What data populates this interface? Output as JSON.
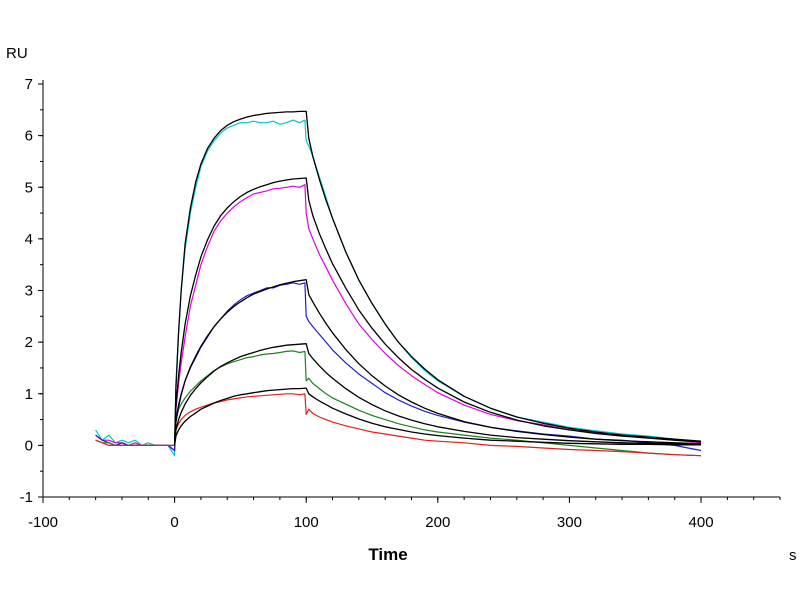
{
  "chart_data": {
    "type": "line",
    "title": "",
    "xlabel": "Time",
    "x_unit": "s",
    "y_unit": "RU",
    "xlim": [
      -100,
      460
    ],
    "ylim": [
      -1,
      7
    ],
    "x_ticks": [
      -100,
      0,
      100,
      200,
      300,
      400
    ],
    "y_ticks": [
      -1,
      0,
      1,
      2,
      3,
      4,
      5,
      6,
      7
    ],
    "grid": false,
    "legend": "none",
    "fit_color": "#000000",
    "series": [
      {
        "color": "#00c8c8",
        "x": [
          -60,
          -55,
          -50,
          -45,
          -40,
          -35,
          -30,
          -25,
          -20,
          -15,
          -10,
          -5,
          0,
          1,
          3,
          5,
          8,
          12,
          16,
          20,
          25,
          30,
          35,
          40,
          45,
          50,
          55,
          60,
          65,
          70,
          75,
          80,
          85,
          90,
          95,
          99,
          100,
          102,
          105,
          110,
          115,
          120,
          130,
          140,
          150,
          160,
          170,
          180,
          190,
          200,
          220,
          240,
          260,
          280,
          300,
          320,
          340,
          360,
          380,
          400
        ],
        "y": [
          0.3,
          0.1,
          0.2,
          0.05,
          0.1,
          0.05,
          0.1,
          0.0,
          0.05,
          0.0,
          0.0,
          0.0,
          -0.2,
          1.2,
          2.2,
          3.0,
          3.8,
          4.5,
          5.0,
          5.4,
          5.7,
          5.9,
          6.05,
          6.15,
          6.2,
          6.25,
          6.25,
          6.28,
          6.25,
          6.25,
          6.28,
          6.22,
          6.25,
          6.3,
          6.25,
          6.3,
          5.9,
          5.8,
          5.6,
          5.2,
          4.8,
          4.4,
          3.75,
          3.2,
          2.75,
          2.35,
          2.0,
          1.7,
          1.45,
          1.25,
          0.95,
          0.72,
          0.55,
          0.45,
          0.35,
          0.28,
          0.22,
          0.18,
          0.12,
          0.05
        ]
      },
      {
        "color": "#e000e0",
        "x": [
          -60,
          -55,
          -50,
          -45,
          -40,
          -35,
          -30,
          -25,
          -20,
          -15,
          -10,
          -5,
          0,
          1,
          3,
          5,
          8,
          12,
          16,
          20,
          25,
          30,
          35,
          40,
          45,
          50,
          55,
          60,
          65,
          70,
          75,
          80,
          85,
          90,
          95,
          99,
          100,
          102,
          105,
          110,
          115,
          120,
          130,
          140,
          150,
          160,
          170,
          180,
          190,
          200,
          220,
          240,
          260,
          280,
          300,
          320,
          340,
          360,
          380,
          400
        ],
        "y": [
          0.2,
          0.1,
          0.1,
          0.05,
          0.05,
          0.0,
          0.05,
          0.0,
          0.0,
          0.0,
          0.0,
          0.0,
          -0.1,
          0.7,
          1.2,
          1.6,
          2.1,
          2.7,
          3.1,
          3.5,
          3.85,
          4.15,
          4.35,
          4.5,
          4.62,
          4.72,
          4.8,
          4.87,
          4.9,
          4.93,
          4.97,
          4.98,
          5.0,
          5.02,
          5.0,
          5.05,
          4.5,
          4.2,
          4.0,
          3.7,
          3.45,
          3.2,
          2.75,
          2.35,
          2.05,
          1.78,
          1.55,
          1.35,
          1.18,
          1.02,
          0.78,
          0.6,
          0.48,
          0.4,
          0.3,
          0.25,
          0.2,
          0.15,
          0.1,
          0.05
        ]
      },
      {
        "color": "#2020c0",
        "x": [
          -60,
          -55,
          -50,
          -45,
          -40,
          -35,
          -30,
          -25,
          -20,
          -15,
          -10,
          -5,
          0,
          1,
          3,
          5,
          8,
          12,
          16,
          20,
          25,
          30,
          35,
          40,
          45,
          50,
          55,
          60,
          65,
          70,
          75,
          80,
          85,
          90,
          95,
          99,
          100,
          102,
          105,
          110,
          115,
          120,
          130,
          140,
          150,
          160,
          170,
          180,
          190,
          200,
          220,
          240,
          260,
          280,
          300,
          320,
          340,
          360,
          380,
          400
        ],
        "y": [
          0.2,
          0.1,
          0.05,
          0.0,
          0.05,
          0.0,
          0.0,
          0.0,
          0.0,
          0.0,
          0.0,
          0.0,
          -0.1,
          0.5,
          0.8,
          1.0,
          1.25,
          1.5,
          1.7,
          1.9,
          2.1,
          2.3,
          2.45,
          2.6,
          2.72,
          2.82,
          2.9,
          2.95,
          3.0,
          3.05,
          3.05,
          3.1,
          3.12,
          3.15,
          3.12,
          3.15,
          2.5,
          2.4,
          2.3,
          2.15,
          2.0,
          1.85,
          1.6,
          1.38,
          1.2,
          1.02,
          0.88,
          0.76,
          0.66,
          0.58,
          0.45,
          0.35,
          0.28,
          0.22,
          0.18,
          0.12,
          0.1,
          0.05,
          0.0,
          -0.1
        ]
      },
      {
        "color": "#208020",
        "x": [
          -60,
          -55,
          -50,
          -45,
          -40,
          -35,
          -30,
          -25,
          -20,
          -15,
          -10,
          -5,
          0,
          1,
          3,
          5,
          8,
          12,
          16,
          20,
          25,
          30,
          35,
          40,
          45,
          50,
          55,
          60,
          65,
          70,
          75,
          80,
          85,
          90,
          95,
          99,
          100,
          102,
          105,
          110,
          115,
          120,
          130,
          140,
          150,
          160,
          170,
          180,
          190,
          200,
          220,
          240,
          260,
          280,
          300,
          320,
          340,
          360,
          380,
          400
        ],
        "y": [
          0.1,
          0.05,
          0.05,
          0.0,
          0.0,
          0.0,
          0.0,
          0.0,
          0.0,
          0.0,
          0.0,
          0.0,
          0.0,
          0.5,
          0.7,
          0.8,
          0.92,
          1.05,
          1.15,
          1.25,
          1.35,
          1.45,
          1.52,
          1.58,
          1.62,
          1.66,
          1.7,
          1.72,
          1.75,
          1.77,
          1.78,
          1.8,
          1.82,
          1.83,
          1.8,
          1.82,
          1.25,
          1.3,
          1.2,
          1.1,
          1.0,
          0.92,
          0.8,
          0.68,
          0.58,
          0.5,
          0.42,
          0.36,
          0.3,
          0.26,
          0.2,
          0.14,
          0.1,
          0.05,
          0.0,
          -0.05,
          -0.1,
          -0.15,
          -0.18,
          -0.2
        ]
      },
      {
        "color": "#e02020",
        "x": [
          -60,
          -55,
          -50,
          -45,
          -40,
          -35,
          -30,
          -25,
          -20,
          -15,
          -10,
          -5,
          0,
          1,
          3,
          5,
          8,
          12,
          16,
          20,
          25,
          30,
          35,
          40,
          45,
          50,
          55,
          60,
          65,
          70,
          75,
          80,
          85,
          90,
          95,
          99,
          100,
          102,
          105,
          110,
          115,
          120,
          130,
          140,
          150,
          160,
          170,
          180,
          190,
          200,
          220,
          240,
          260,
          280,
          300,
          320,
          340,
          360,
          380,
          400
        ],
        "y": [
          0.1,
          0.05,
          0.0,
          0.0,
          0.0,
          0.0,
          0.0,
          0.0,
          0.0,
          0.0,
          0.0,
          0.0,
          0.0,
          0.3,
          0.42,
          0.5,
          0.58,
          0.65,
          0.7,
          0.74,
          0.78,
          0.82,
          0.85,
          0.88,
          0.9,
          0.92,
          0.94,
          0.95,
          0.96,
          0.97,
          0.98,
          0.99,
          1.0,
          1.0,
          0.98,
          1.0,
          0.6,
          0.7,
          0.62,
          0.55,
          0.5,
          0.45,
          0.38,
          0.32,
          0.26,
          0.22,
          0.18,
          0.14,
          0.1,
          0.08,
          0.05,
          0.0,
          -0.02,
          -0.05,
          -0.08,
          -0.1,
          -0.12,
          -0.15,
          -0.18,
          -0.2
        ]
      },
      {
        "color": "#000000",
        "x": [
          0,
          1,
          3,
          5,
          8,
          12,
          16,
          20,
          25,
          30,
          35,
          40,
          45,
          50,
          55,
          60,
          65,
          70,
          75,
          80,
          85,
          90,
          95,
          100,
          102,
          105,
          110,
          115,
          120,
          130,
          140,
          150,
          160,
          170,
          180,
          190,
          200,
          220,
          240,
          260,
          280,
          300,
          320,
          340,
          360,
          380,
          400
        ],
        "y": [
          0.0,
          1.1,
          2.2,
          3.0,
          3.9,
          4.6,
          5.1,
          5.45,
          5.75,
          5.95,
          6.1,
          6.2,
          6.27,
          6.32,
          6.36,
          6.39,
          6.41,
          6.43,
          6.44,
          6.45,
          6.46,
          6.46,
          6.47,
          6.47,
          5.95,
          5.6,
          5.15,
          4.75,
          4.4,
          3.75,
          3.2,
          2.75,
          2.35,
          2.0,
          1.72,
          1.48,
          1.27,
          0.95,
          0.72,
          0.55,
          0.43,
          0.33,
          0.26,
          0.2,
          0.16,
          0.12,
          0.08
        ]
      },
      {
        "color": "#000000",
        "x": [
          0,
          1,
          3,
          5,
          8,
          12,
          16,
          20,
          25,
          30,
          35,
          40,
          45,
          50,
          55,
          60,
          65,
          70,
          75,
          80,
          85,
          90,
          95,
          100,
          102,
          105,
          110,
          115,
          120,
          130,
          140,
          150,
          160,
          170,
          180,
          190,
          200,
          220,
          240,
          260,
          280,
          300,
          320,
          340,
          360,
          380,
          400
        ],
        "y": [
          0.0,
          0.75,
          1.35,
          1.8,
          2.35,
          2.9,
          3.3,
          3.65,
          3.98,
          4.25,
          4.45,
          4.6,
          4.72,
          4.82,
          4.9,
          4.96,
          5.01,
          5.05,
          5.09,
          5.12,
          5.14,
          5.16,
          5.17,
          5.18,
          4.75,
          4.45,
          4.1,
          3.8,
          3.52,
          3.05,
          2.62,
          2.27,
          1.96,
          1.7,
          1.47,
          1.28,
          1.11,
          0.84,
          0.64,
          0.49,
          0.38,
          0.3,
          0.23,
          0.18,
          0.14,
          0.1,
          0.07
        ]
      },
      {
        "color": "#000000",
        "x": [
          0,
          1,
          3,
          5,
          8,
          12,
          16,
          20,
          25,
          30,
          35,
          40,
          45,
          50,
          55,
          60,
          65,
          70,
          75,
          80,
          85,
          90,
          95,
          100,
          102,
          105,
          110,
          115,
          120,
          130,
          140,
          150,
          160,
          170,
          180,
          190,
          200,
          220,
          240,
          260,
          280,
          300,
          320,
          340,
          360,
          380,
          400
        ],
        "y": [
          0.0,
          0.45,
          0.75,
          0.98,
          1.25,
          1.52,
          1.73,
          1.92,
          2.12,
          2.3,
          2.45,
          2.58,
          2.69,
          2.78,
          2.86,
          2.93,
          2.98,
          3.03,
          3.07,
          3.11,
          3.14,
          3.17,
          3.19,
          3.21,
          2.92,
          2.78,
          2.56,
          2.36,
          2.18,
          1.86,
          1.58,
          1.35,
          1.15,
          0.98,
          0.84,
          0.72,
          0.62,
          0.46,
          0.35,
          0.27,
          0.21,
          0.16,
          0.12,
          0.09,
          0.07,
          0.05,
          0.03
        ]
      },
      {
        "color": "#000000",
        "x": [
          0,
          1,
          3,
          5,
          8,
          12,
          16,
          20,
          25,
          30,
          35,
          40,
          45,
          50,
          55,
          60,
          65,
          70,
          75,
          80,
          85,
          90,
          95,
          100,
          102,
          105,
          110,
          115,
          120,
          130,
          140,
          150,
          160,
          170,
          180,
          190,
          200,
          220,
          240,
          260,
          280,
          300,
          320,
          340,
          360,
          380,
          400
        ],
        "y": [
          0.0,
          0.3,
          0.5,
          0.64,
          0.8,
          0.97,
          1.1,
          1.21,
          1.33,
          1.44,
          1.53,
          1.6,
          1.66,
          1.72,
          1.76,
          1.8,
          1.84,
          1.87,
          1.9,
          1.92,
          1.94,
          1.95,
          1.96,
          1.97,
          1.78,
          1.68,
          1.54,
          1.41,
          1.3,
          1.1,
          0.93,
          0.79,
          0.67,
          0.57,
          0.49,
          0.42,
          0.36,
          0.27,
          0.2,
          0.15,
          0.12,
          0.09,
          0.07,
          0.05,
          0.04,
          0.03,
          0.02
        ]
      },
      {
        "color": "#000000",
        "x": [
          0,
          1,
          3,
          5,
          8,
          12,
          16,
          20,
          25,
          30,
          35,
          40,
          45,
          50,
          55,
          60,
          65,
          70,
          75,
          80,
          85,
          90,
          95,
          100,
          102,
          105,
          110,
          115,
          120,
          130,
          140,
          150,
          160,
          170,
          180,
          190,
          200,
          220,
          240,
          260,
          280,
          300,
          320,
          340,
          360,
          380,
          400
        ],
        "y": [
          0.0,
          0.18,
          0.3,
          0.38,
          0.47,
          0.56,
          0.63,
          0.7,
          0.76,
          0.82,
          0.87,
          0.91,
          0.95,
          0.98,
          1.0,
          1.02,
          1.04,
          1.06,
          1.07,
          1.08,
          1.09,
          1.1,
          1.1,
          1.11,
          1.0,
          0.94,
          0.86,
          0.79,
          0.72,
          0.61,
          0.51,
          0.43,
          0.36,
          0.31,
          0.26,
          0.22,
          0.19,
          0.14,
          0.1,
          0.08,
          0.06,
          0.04,
          0.03,
          0.02,
          0.02,
          0.01,
          0.01
        ]
      }
    ]
  }
}
